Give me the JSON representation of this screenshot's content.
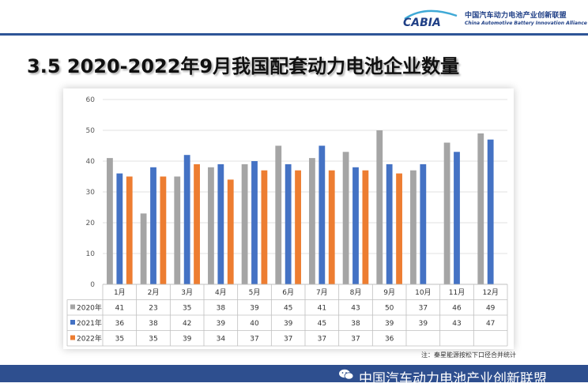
{
  "header": {
    "logo_word": "CABIA",
    "org_cn": "中国汽车动力电池产业创新联盟",
    "org_en": "China Automotive Battery Innovation Alliance"
  },
  "title": "3.5 2020-2022年9月我国配套动力电池企业数量",
  "note": "注：秦星能源按松下口径合并统计",
  "footer": {
    "text": "中国汽车动力电池产业创新联盟",
    "icon": "wechat-icon"
  },
  "colors": {
    "s2020": "#a5a5a5",
    "s2021": "#4472c4",
    "s2022": "#ed7d31",
    "grid": "#d9d9d9",
    "header_bar": "#2e5597",
    "footer_bar": "#2e4f8f"
  },
  "chart_data": {
    "type": "bar",
    "categories": [
      "1月",
      "2月",
      "3月",
      "4月",
      "5月",
      "6月",
      "7月",
      "8月",
      "9月",
      "10月",
      "11月",
      "12月"
    ],
    "series": [
      {
        "name": "2020年",
        "color": "#a5a5a5",
        "values": [
          41,
          23,
          35,
          38,
          39,
          45,
          41,
          43,
          50,
          37,
          46,
          49
        ]
      },
      {
        "name": "2021年",
        "color": "#4472c4",
        "values": [
          36,
          38,
          42,
          39,
          40,
          39,
          45,
          38,
          39,
          39,
          43,
          47
        ]
      },
      {
        "name": "2022年",
        "color": "#ed7d31",
        "values": [
          35,
          35,
          39,
          34,
          37,
          37,
          37,
          37,
          36,
          null,
          null,
          null
        ]
      }
    ],
    "ylim": [
      0,
      60
    ],
    "yticks": [
      0,
      10,
      20,
      30,
      40,
      50,
      60
    ],
    "grid": true,
    "legend": "bottom",
    "data_table": true
  }
}
